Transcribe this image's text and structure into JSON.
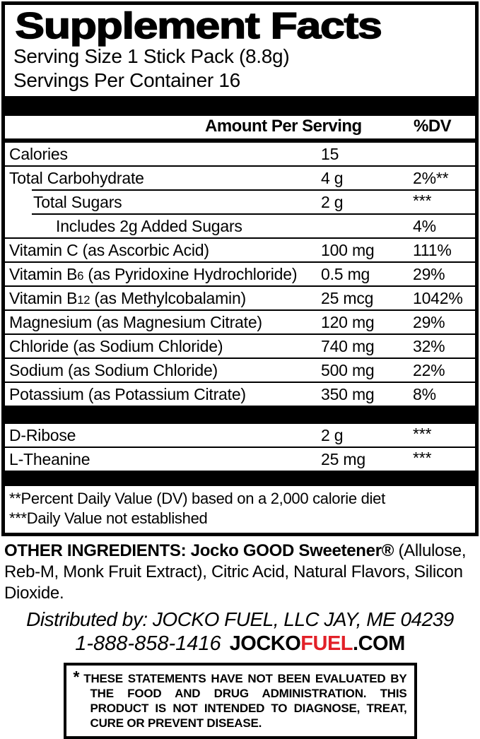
{
  "colors": {
    "ink": "#000000",
    "accent_red": "#e22028",
    "background": "#ffffff"
  },
  "panel": {
    "title": "Supplement Facts",
    "serving_size": "Serving Size 1 Stick Pack (8.8g)",
    "servings_per_container": "Servings Per Container 16",
    "table": {
      "header_amount": "Amount Per Serving",
      "header_dv": "%DV",
      "rows": [
        {
          "name": "Calories",
          "amount": "15",
          "dv": ""
        },
        {
          "name": "Total Carbohydrate",
          "amount": "4 g",
          "dv": "2%**"
        },
        {
          "name": "Total Sugars",
          "amount": "2 g",
          "dv": "***",
          "indent": 1
        },
        {
          "name": "Includes 2g Added Sugars",
          "amount": "",
          "dv": "4%",
          "indent": 2
        },
        {
          "name": "Vitamin C (as Ascorbic Acid)",
          "amount": "100 mg",
          "dv": "111%"
        },
        {
          "name_pre": "Vitamin B",
          "name_small": "6",
          "name_post": " (as Pyridoxine Hydrochloride)",
          "amount": "0.5 mg",
          "dv": "29%"
        },
        {
          "name_pre": "Vitamin B",
          "name_small": "12",
          "name_post": " (as Methylcobalamin)",
          "amount": "25 mcg",
          "dv": "1042%"
        },
        {
          "name": "Magnesium (as Magnesium Citrate)",
          "amount": "120 mg",
          "dv": "29%"
        },
        {
          "name": "Chloride (as Sodium Chloride)",
          "amount": "740 mg",
          "dv": "32%"
        },
        {
          "name": "Sodium (as Sodium Chloride)",
          "amount": "500 mg",
          "dv": "22%"
        },
        {
          "name": "Potassium (as Potassium Citrate)",
          "amount": "350 mg",
          "dv": "8%"
        }
      ],
      "extra_rows": [
        {
          "name": "D-Ribose",
          "amount": "2 g",
          "dv": "***"
        },
        {
          "name": "L-Theanine",
          "amount": "25 mg",
          "dv": "***"
        }
      ]
    },
    "footnotes": {
      "dv_note": "**Percent Daily Value (DV) based on a 2,000 calorie diet",
      "established_note": "***Daily Value not established"
    }
  },
  "other_ingredients": {
    "label_bold": "OTHER INGREDIENTS: Jocko GOOD Sweetener®",
    "rest": " (Allulose, Reb-M, Monk Fruit Extract), Citric Acid, Natural Flavors, Silicon Dioxide."
  },
  "distribution": {
    "distributed_by": "Distributed by: JOCKO FUEL, LLC JAY, ME 04239",
    "phone": "1-888-858-1416",
    "url_part1": "JOCKO",
    "url_part2": "FUEL",
    "url_part3": ".COM"
  },
  "disclaimer": {
    "asterisk": "*",
    "text": "THESE STATEMENTS HAVE NOT BEEN EVALUATED BY THE FOOD AND DRUG ADMINISTRATION. THIS PRODUCT IS NOT INTENDED TO DIAGNOSE, TREAT, CURE OR PREVENT DISEASE."
  }
}
